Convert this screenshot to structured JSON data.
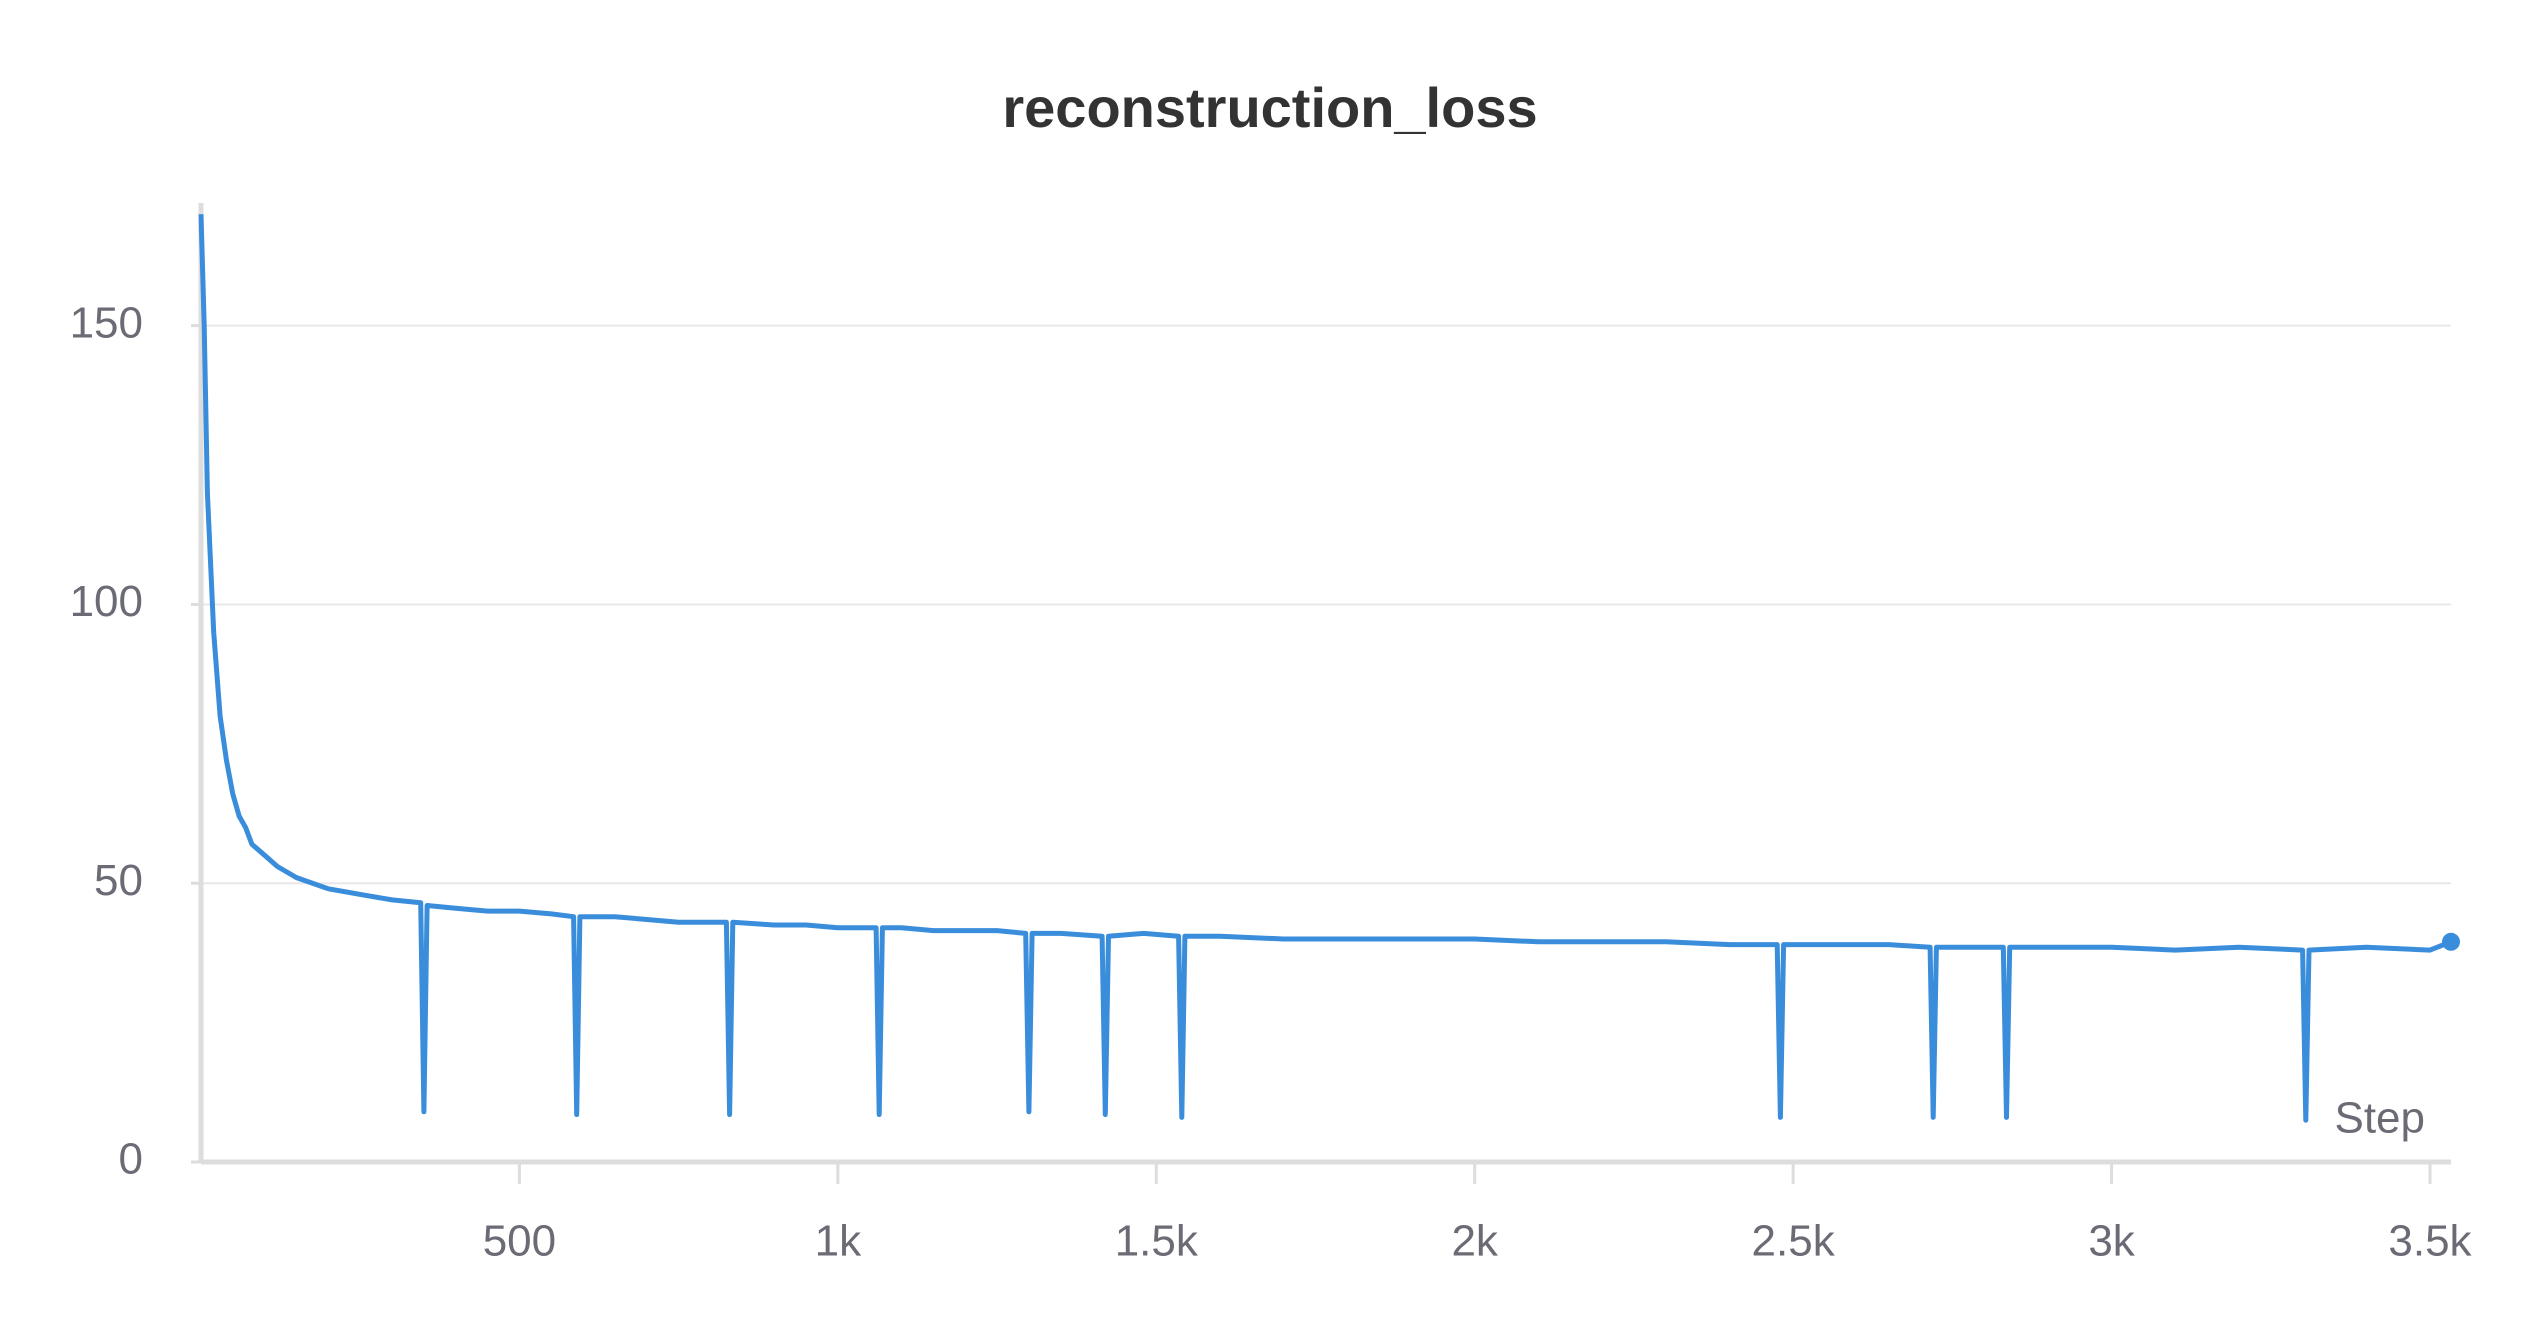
{
  "chart_data": {
    "type": "line",
    "title": "reconstruction_loss",
    "x_label": "Step",
    "color": "#3a8ddb",
    "grid": true,
    "xlim": [
      0,
      3533
    ],
    "ylim": [
      0,
      172
    ],
    "xticks": [
      500,
      {
        "value": 1000,
        "label": "1k"
      },
      {
        "value": 1500,
        "label": "1.5k"
      },
      {
        "value": 2000,
        "label": "2k"
      },
      {
        "value": 2500,
        "label": "2.5k"
      },
      {
        "value": 3000,
        "label": "3k"
      },
      {
        "value": 3500,
        "label": "3.5k"
      }
    ],
    "yticks": [
      0,
      50,
      100,
      150
    ],
    "x": [
      0,
      5,
      10,
      20,
      30,
      40,
      50,
      60,
      70,
      80,
      100,
      120,
      150,
      200,
      250,
      300,
      345,
      350,
      355,
      400,
      450,
      500,
      550,
      585,
      590,
      595,
      650,
      700,
      750,
      800,
      825,
      830,
      835,
      900,
      950,
      1000,
      1060,
      1065,
      1070,
      1100,
      1150,
      1200,
      1250,
      1295,
      1300,
      1305,
      1350,
      1415,
      1420,
      1425,
      1480,
      1535,
      1540,
      1545,
      1600,
      1700,
      1800,
      1900,
      2000,
      2100,
      2200,
      2300,
      2400,
      2475,
      2480,
      2485,
      2550,
      2650,
      2715,
      2720,
      2725,
      2780,
      2830,
      2835,
      2840,
      2900,
      3000,
      3100,
      3200,
      3300,
      3305,
      3310,
      3400,
      3500,
      3533
    ],
    "values": [
      170,
      150,
      120,
      95,
      80,
      72,
      66,
      62,
      60,
      57,
      55,
      53,
      51,
      49,
      48,
      47,
      46.5,
      9,
      46,
      45.5,
      45,
      45,
      44.5,
      44,
      8.5,
      44,
      44,
      43.5,
      43,
      43,
      43,
      8.5,
      43,
      42.5,
      42.5,
      42,
      42,
      8.5,
      42,
      42,
      41.5,
      41.5,
      41.5,
      41,
      9,
      41,
      41,
      40.5,
      8.5,
      40.5,
      41,
      40.5,
      8,
      40.5,
      40.5,
      40,
      40,
      40,
      40,
      39.5,
      39.5,
      39.5,
      39,
      39,
      8,
      39,
      39,
      39,
      38.5,
      8,
      38.5,
      38.5,
      38.5,
      8,
      38.5,
      38.5,
      38.5,
      38,
      38.5,
      38,
      7.5,
      38,
      38.5,
      38,
      39.5
    ]
  }
}
